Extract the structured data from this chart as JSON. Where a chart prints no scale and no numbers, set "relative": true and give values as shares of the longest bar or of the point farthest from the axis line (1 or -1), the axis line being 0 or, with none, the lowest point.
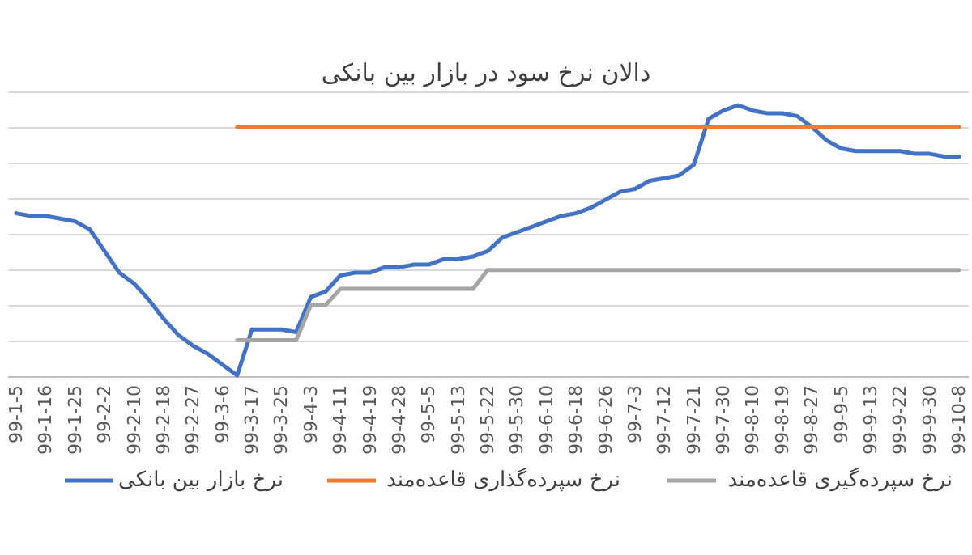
{
  "chart_data": {
    "type": "line",
    "title": "دالان نرخ سود در بازار بین بانکی",
    "relative": true,
    "grid": "y",
    "legend": "bottom",
    "marker": "none",
    "line_style": "solid",
    "categories": [
      "99-1-5",
      null,
      "99-1-16",
      null,
      "99-1-25",
      null,
      "99-2-2",
      null,
      "99-2-10",
      null,
      "99-2-18",
      null,
      "99-2-27",
      null,
      "99-3-6",
      null,
      "99-3-17",
      null,
      "99-3-25",
      null,
      "99-4-3",
      null,
      "99-4-11",
      null,
      "99-4-19",
      null,
      "99-4-28",
      null,
      "99-5-5",
      null,
      "99-5-13",
      null,
      "99-5-22",
      null,
      "99-5-30",
      null,
      "99-6-10",
      null,
      "99-6-18",
      null,
      "99-6-26",
      null,
      "99-7-3",
      null,
      "99-7-12",
      null,
      "99-7-21",
      null,
      "99-7-30",
      null,
      "99-8-10",
      null,
      "99-8-19",
      null,
      "99-8-27",
      null,
      "99-9-5",
      null,
      "99-9-13",
      null,
      "99-9-22",
      null,
      "99-9-30",
      null,
      "99-10-8"
    ],
    "series": [
      {
        "name": "نرخ بازار بین بانکی",
        "color": "#4472c4",
        "values": [
          0.6,
          0.59,
          0.59,
          0.58,
          0.57,
          0.54,
          0.46,
          0.38,
          0.34,
          0.28,
          0.21,
          0.15,
          0.11,
          0.08,
          0.04,
          0,
          0.17,
          0.17,
          0.17,
          0.16,
          0.29,
          0.31,
          0.37,
          0.38,
          0.38,
          0.4,
          0.4,
          0.41,
          0.41,
          0.43,
          0.43,
          0.44,
          0.46,
          0.51,
          0.53,
          0.55,
          0.57,
          0.59,
          0.6,
          0.62,
          0.65,
          0.68,
          0.69,
          0.72,
          0.73,
          0.74,
          0.78,
          0.95,
          0.98,
          1,
          0.98,
          0.97,
          0.97,
          0.96,
          0.92,
          0.87,
          0.84,
          0.83,
          0.83,
          0.83,
          0.83,
          0.82,
          0.82,
          0.81,
          0.81
        ]
      },
      {
        "name": "نرخ سپرده‌گذاری قاعده‌مند",
        "color": "#ed7d31",
        "values": [
          null,
          null,
          null,
          null,
          null,
          null,
          null,
          null,
          null,
          null,
          null,
          null,
          null,
          null,
          null,
          0.92,
          0.92,
          0.92,
          0.92,
          0.92,
          0.92,
          0.92,
          0.92,
          0.92,
          0.92,
          0.92,
          0.92,
          0.92,
          0.92,
          0.92,
          0.92,
          0.92,
          0.92,
          0.92,
          0.92,
          0.92,
          0.92,
          0.92,
          0.92,
          0.92,
          0.92,
          0.92,
          0.92,
          0.92,
          0.92,
          0.92,
          0.92,
          0.92,
          0.92,
          0.92,
          0.92,
          0.92,
          0.92,
          0.92,
          0.92,
          0.92,
          0.92,
          0.92,
          0.92,
          0.92,
          0.92,
          0.92,
          0.92,
          0.92,
          0.92
        ]
      },
      {
        "name": "نرخ سپرده‌گیری قاعده‌مند",
        "color": "#a5a5a5",
        "values": [
          null,
          null,
          null,
          null,
          null,
          null,
          null,
          null,
          null,
          null,
          null,
          null,
          null,
          null,
          null,
          0.13,
          0.13,
          0.13,
          0.13,
          0.13,
          0.26,
          0.26,
          0.32,
          0.32,
          0.32,
          0.32,
          0.32,
          0.32,
          0.32,
          0.32,
          0.32,
          0.32,
          0.39,
          0.39,
          0.39,
          0.39,
          0.39,
          0.39,
          0.39,
          0.39,
          0.39,
          0.39,
          0.39,
          0.39,
          0.39,
          0.39,
          0.39,
          0.39,
          0.39,
          0.39,
          0.39,
          0.39,
          0.39,
          0.39,
          0.39,
          0.39,
          0.39,
          0.39,
          0.39,
          0.39,
          0.39,
          0.39,
          0.39,
          0.39,
          0.39
        ]
      }
    ]
  }
}
